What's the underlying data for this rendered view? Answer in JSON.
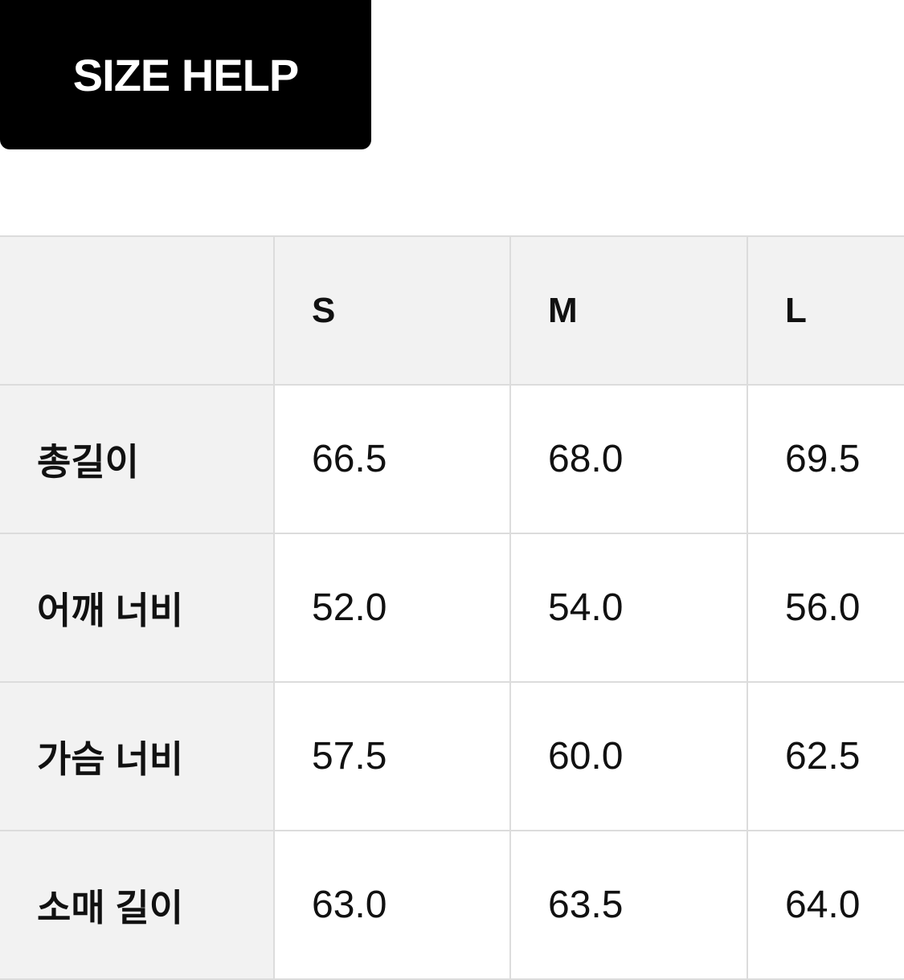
{
  "button": {
    "label": "SIZE HELP"
  },
  "table": {
    "headers": [
      "",
      "S",
      "M",
      "L"
    ],
    "rows": [
      {
        "label": "총길이",
        "values": [
          "66.5",
          "68.0",
          "69.5"
        ]
      },
      {
        "label": "어깨 너비",
        "values": [
          "52.0",
          "54.0",
          "56.0"
        ]
      },
      {
        "label": "가슴 너비",
        "values": [
          "57.5",
          "60.0",
          "62.5"
        ]
      },
      {
        "label": "소매 길이",
        "values": [
          "63.0",
          "63.5",
          "64.0"
        ]
      }
    ]
  }
}
